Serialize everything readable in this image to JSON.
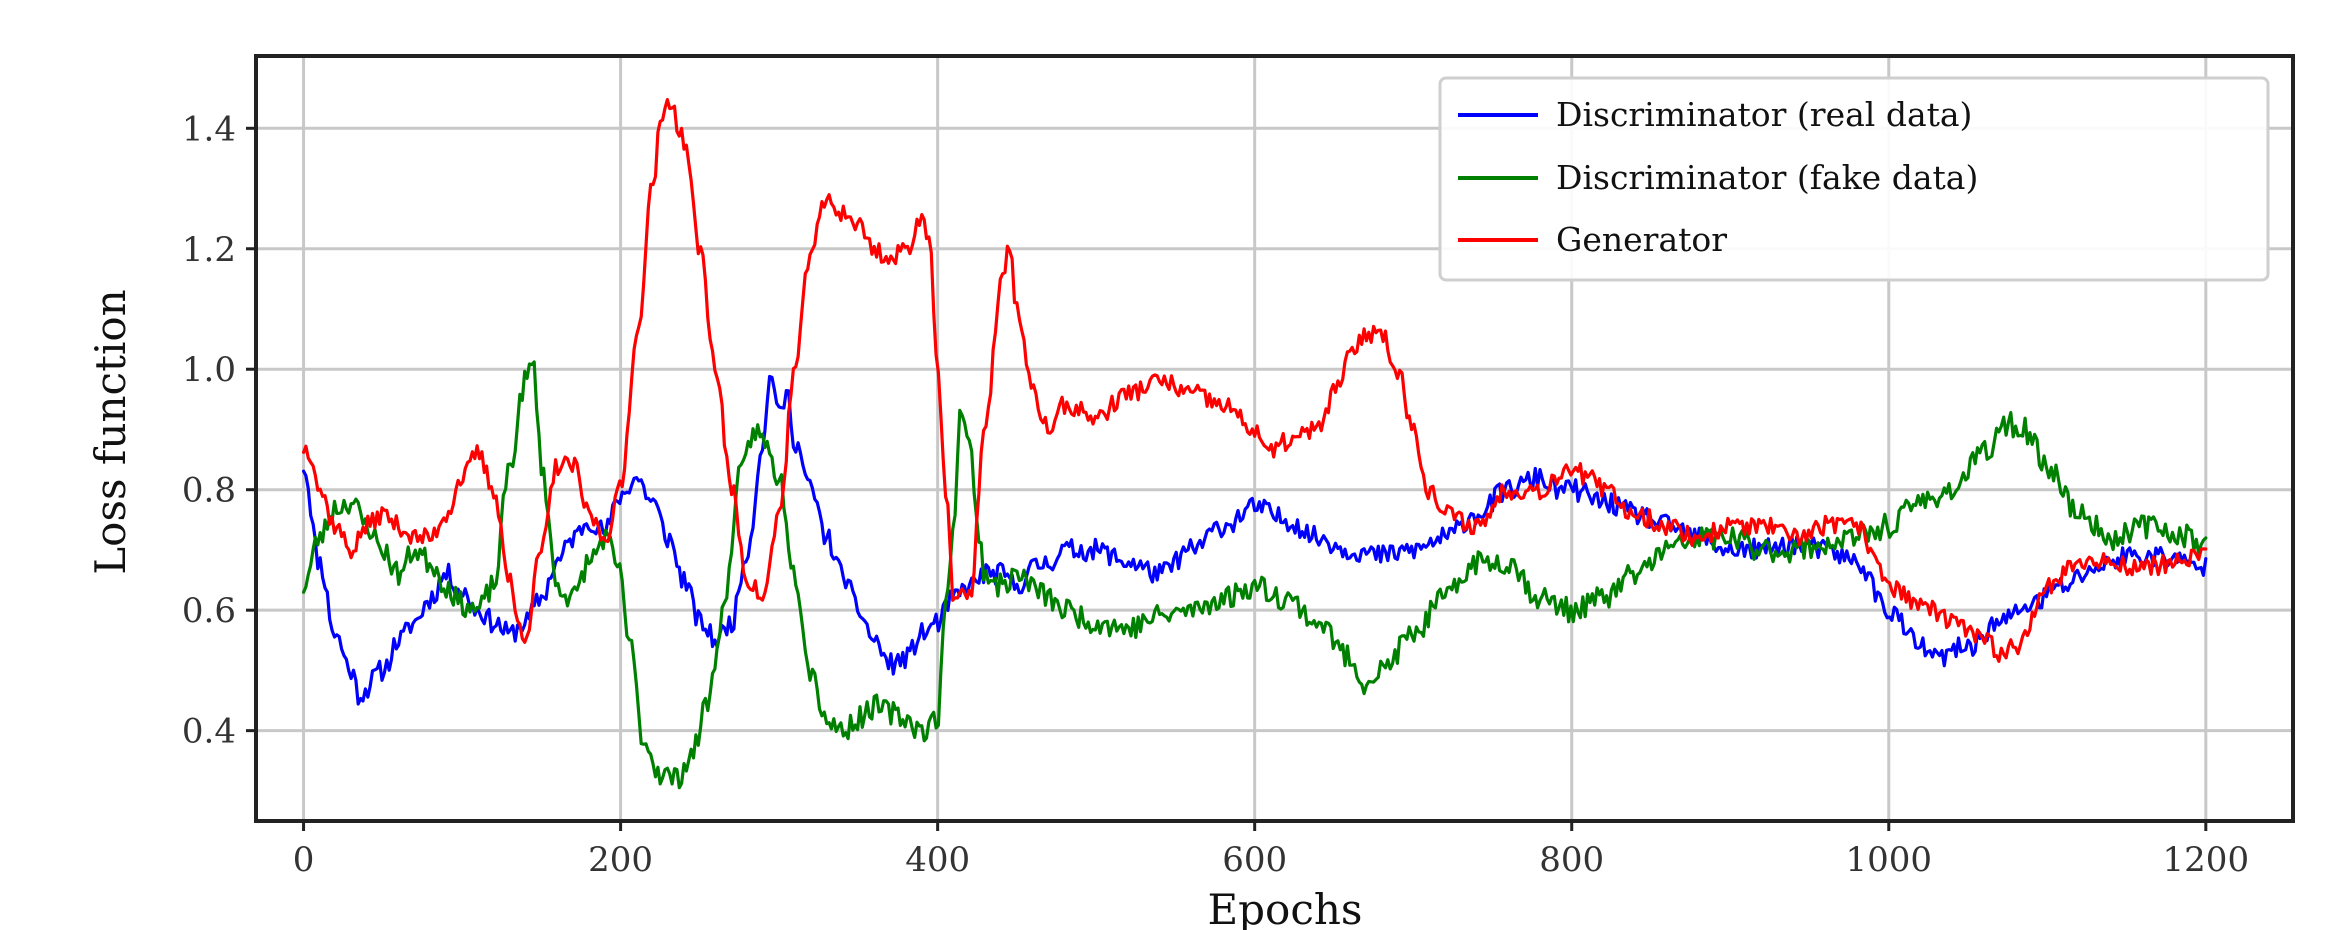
{
  "chart_data": {
    "type": "line",
    "title": "",
    "xlabel": "Epochs",
    "ylabel": "Loss function",
    "xlim": [
      -30,
      1255
    ],
    "ylim": [
      0.25,
      1.52
    ],
    "xticks": [
      0,
      200,
      400,
      600,
      800,
      1000,
      1200
    ],
    "yticks": [
      0.4,
      0.6,
      0.8,
      1.0,
      1.2,
      1.4
    ],
    "xtick_labels": [
      "0",
      "200",
      "400",
      "600",
      "800",
      "1000",
      "1200"
    ],
    "ytick_labels": [
      "0.4",
      "0.6",
      "0.8",
      "1.0",
      "1.2",
      "1.4"
    ],
    "grid": true,
    "legend_position": "top-right",
    "series": [
      {
        "name": "Discriminator (real data)",
        "color": "#0000ff",
        "keypoints": [
          [
            0,
            0.84
          ],
          [
            10,
            0.68
          ],
          [
            20,
            0.56
          ],
          [
            30,
            0.5
          ],
          [
            35,
            0.46
          ],
          [
            50,
            0.5
          ],
          [
            60,
            0.55
          ],
          [
            70,
            0.58
          ],
          [
            80,
            0.62
          ],
          [
            90,
            0.66
          ],
          [
            100,
            0.63
          ],
          [
            110,
            0.6
          ],
          [
            120,
            0.58
          ],
          [
            130,
            0.56
          ],
          [
            140,
            0.58
          ],
          [
            150,
            0.62
          ],
          [
            160,
            0.68
          ],
          [
            170,
            0.72
          ],
          [
            180,
            0.75
          ],
          [
            190,
            0.73
          ],
          [
            200,
            0.79
          ],
          [
            210,
            0.82
          ],
          [
            220,
            0.78
          ],
          [
            230,
            0.72
          ],
          [
            240,
            0.65
          ],
          [
            250,
            0.58
          ],
          [
            260,
            0.55
          ],
          [
            270,
            0.58
          ],
          [
            280,
            0.7
          ],
          [
            290,
            0.88
          ],
          [
            295,
            1.0
          ],
          [
            300,
            0.92
          ],
          [
            305,
            0.96
          ],
          [
            310,
            0.88
          ],
          [
            320,
            0.8
          ],
          [
            330,
            0.72
          ],
          [
            340,
            0.66
          ],
          [
            350,
            0.6
          ],
          [
            360,
            0.55
          ],
          [
            370,
            0.51
          ],
          [
            380,
            0.52
          ],
          [
            390,
            0.56
          ],
          [
            400,
            0.58
          ],
          [
            410,
            0.62
          ],
          [
            420,
            0.64
          ],
          [
            430,
            0.66
          ],
          [
            440,
            0.66
          ],
          [
            450,
            0.64
          ],
          [
            460,
            0.67
          ],
          [
            470,
            0.68
          ],
          [
            480,
            0.7
          ],
          [
            500,
            0.7
          ],
          [
            520,
            0.68
          ],
          [
            540,
            0.66
          ],
          [
            560,
            0.7
          ],
          [
            580,
            0.74
          ],
          [
            600,
            0.77
          ],
          [
            620,
            0.75
          ],
          [
            640,
            0.72
          ],
          [
            660,
            0.7
          ],
          [
            680,
            0.69
          ],
          [
            700,
            0.7
          ],
          [
            720,
            0.72
          ],
          [
            740,
            0.76
          ],
          [
            760,
            0.8
          ],
          [
            780,
            0.82
          ],
          [
            790,
            0.8
          ],
          [
            800,
            0.8
          ],
          [
            820,
            0.78
          ],
          [
            840,
            0.76
          ],
          [
            860,
            0.74
          ],
          [
            880,
            0.72
          ],
          [
            900,
            0.7
          ],
          [
            920,
            0.7
          ],
          [
            940,
            0.71
          ],
          [
            960,
            0.7
          ],
          [
            980,
            0.68
          ],
          [
            1000,
            0.6
          ],
          [
            1020,
            0.54
          ],
          [
            1030,
            0.52
          ],
          [
            1050,
            0.54
          ],
          [
            1070,
            0.58
          ],
          [
            1090,
            0.61
          ],
          [
            1110,
            0.64
          ],
          [
            1130,
            0.67
          ],
          [
            1150,
            0.69
          ],
          [
            1170,
            0.69
          ],
          [
            1200,
            0.67
          ]
        ],
        "noise": 0.018,
        "seed": 11
      },
      {
        "name": "Discriminator (fake data)",
        "color": "#008000",
        "keypoints": [
          [
            0,
            0.64
          ],
          [
            10,
            0.72
          ],
          [
            20,
            0.77
          ],
          [
            30,
            0.78
          ],
          [
            40,
            0.74
          ],
          [
            50,
            0.7
          ],
          [
            60,
            0.66
          ],
          [
            70,
            0.7
          ],
          [
            80,
            0.68
          ],
          [
            90,
            0.64
          ],
          [
            100,
            0.61
          ],
          [
            110,
            0.6
          ],
          [
            120,
            0.64
          ],
          [
            130,
            0.84
          ],
          [
            140,
            0.98
          ],
          [
            145,
            1.01
          ],
          [
            150,
            0.84
          ],
          [
            160,
            0.64
          ],
          [
            170,
            0.62
          ],
          [
            180,
            0.68
          ],
          [
            190,
            0.72
          ],
          [
            200,
            0.66
          ],
          [
            205,
            0.55
          ],
          [
            215,
            0.38
          ],
          [
            225,
            0.33
          ],
          [
            235,
            0.32
          ],
          [
            245,
            0.36
          ],
          [
            255,
            0.45
          ],
          [
            265,
            0.6
          ],
          [
            275,
            0.82
          ],
          [
            285,
            0.9
          ],
          [
            290,
            0.88
          ],
          [
            300,
            0.82
          ],
          [
            310,
            0.66
          ],
          [
            320,
            0.5
          ],
          [
            330,
            0.42
          ],
          [
            340,
            0.4
          ],
          [
            350,
            0.42
          ],
          [
            360,
            0.44
          ],
          [
            370,
            0.43
          ],
          [
            380,
            0.42
          ],
          [
            390,
            0.4
          ],
          [
            400,
            0.42
          ],
          [
            405,
            0.6
          ],
          [
            410,
            0.75
          ],
          [
            415,
            0.94
          ],
          [
            420,
            0.88
          ],
          [
            425,
            0.74
          ],
          [
            430,
            0.66
          ],
          [
            440,
            0.64
          ],
          [
            450,
            0.66
          ],
          [
            460,
            0.64
          ],
          [
            470,
            0.62
          ],
          [
            480,
            0.6
          ],
          [
            500,
            0.58
          ],
          [
            520,
            0.57
          ],
          [
            540,
            0.59
          ],
          [
            560,
            0.6
          ],
          [
            580,
            0.62
          ],
          [
            600,
            0.64
          ],
          [
            620,
            0.62
          ],
          [
            640,
            0.58
          ],
          [
            660,
            0.52
          ],
          [
            670,
            0.48
          ],
          [
            680,
            0.5
          ],
          [
            700,
            0.56
          ],
          [
            720,
            0.62
          ],
          [
            740,
            0.68
          ],
          [
            760,
            0.68
          ],
          [
            780,
            0.62
          ],
          [
            800,
            0.6
          ],
          [
            820,
            0.62
          ],
          [
            840,
            0.66
          ],
          [
            860,
            0.7
          ],
          [
            880,
            0.72
          ],
          [
            900,
            0.72
          ],
          [
            920,
            0.7
          ],
          [
            940,
            0.7
          ],
          [
            960,
            0.71
          ],
          [
            980,
            0.72
          ],
          [
            1000,
            0.74
          ],
          [
            1020,
            0.78
          ],
          [
            1040,
            0.8
          ],
          [
            1060,
            0.86
          ],
          [
            1075,
            0.91
          ],
          [
            1085,
            0.9
          ],
          [
            1100,
            0.84
          ],
          [
            1120,
            0.76
          ],
          [
            1140,
            0.72
          ],
          [
            1160,
            0.74
          ],
          [
            1180,
            0.73
          ],
          [
            1200,
            0.71
          ]
        ],
        "noise": 0.02,
        "seed": 23
      },
      {
        "name": "Generator",
        "color": "#ff0000",
        "keypoints": [
          [
            0,
            0.87
          ],
          [
            5,
            0.86
          ],
          [
            10,
            0.8
          ],
          [
            20,
            0.74
          ],
          [
            30,
            0.7
          ],
          [
            40,
            0.74
          ],
          [
            50,
            0.76
          ],
          [
            60,
            0.74
          ],
          [
            70,
            0.72
          ],
          [
            80,
            0.72
          ],
          [
            90,
            0.76
          ],
          [
            100,
            0.82
          ],
          [
            110,
            0.86
          ],
          [
            120,
            0.8
          ],
          [
            130,
            0.65
          ],
          [
            135,
            0.58
          ],
          [
            140,
            0.56
          ],
          [
            150,
            0.7
          ],
          [
            160,
            0.84
          ],
          [
            170,
            0.84
          ],
          [
            180,
            0.76
          ],
          [
            190,
            0.72
          ],
          [
            200,
            0.8
          ],
          [
            210,
            1.05
          ],
          [
            220,
            1.3
          ],
          [
            225,
            1.4
          ],
          [
            230,
            1.45
          ],
          [
            240,
            1.38
          ],
          [
            250,
            1.2
          ],
          [
            260,
            1.0
          ],
          [
            270,
            0.8
          ],
          [
            280,
            0.65
          ],
          [
            290,
            0.62
          ],
          [
            300,
            0.76
          ],
          [
            310,
            1.0
          ],
          [
            320,
            1.2
          ],
          [
            330,
            1.28
          ],
          [
            340,
            1.26
          ],
          [
            350,
            1.24
          ],
          [
            360,
            1.2
          ],
          [
            370,
            1.18
          ],
          [
            380,
            1.2
          ],
          [
            390,
            1.25
          ],
          [
            395,
            1.22
          ],
          [
            400,
            1.0
          ],
          [
            405,
            0.8
          ],
          [
            410,
            0.62
          ],
          [
            420,
            0.62
          ],
          [
            430,
            0.9
          ],
          [
            440,
            1.14
          ],
          [
            445,
            1.21
          ],
          [
            450,
            1.1
          ],
          [
            460,
            0.96
          ],
          [
            470,
            0.9
          ],
          [
            480,
            0.94
          ],
          [
            500,
            0.92
          ],
          [
            520,
            0.96
          ],
          [
            540,
            0.98
          ],
          [
            560,
            0.96
          ],
          [
            580,
            0.94
          ],
          [
            600,
            0.9
          ],
          [
            610,
            0.86
          ],
          [
            620,
            0.88
          ],
          [
            640,
            0.9
          ],
          [
            650,
            0.96
          ],
          [
            660,
            1.02
          ],
          [
            670,
            1.06
          ],
          [
            680,
            1.06
          ],
          [
            690,
            1.0
          ],
          [
            700,
            0.9
          ],
          [
            710,
            0.8
          ],
          [
            720,
            0.76
          ],
          [
            740,
            0.74
          ],
          [
            760,
            0.8
          ],
          [
            780,
            0.8
          ],
          [
            800,
            0.84
          ],
          [
            810,
            0.82
          ],
          [
            820,
            0.8
          ],
          [
            840,
            0.76
          ],
          [
            860,
            0.74
          ],
          [
            880,
            0.72
          ],
          [
            900,
            0.74
          ],
          [
            920,
            0.74
          ],
          [
            940,
            0.72
          ],
          [
            960,
            0.74
          ],
          [
            980,
            0.74
          ],
          [
            990,
            0.7
          ],
          [
            1000,
            0.64
          ],
          [
            1020,
            0.61
          ],
          [
            1040,
            0.58
          ],
          [
            1060,
            0.55
          ],
          [
            1070,
            0.53
          ],
          [
            1080,
            0.54
          ],
          [
            1100,
            0.64
          ],
          [
            1120,
            0.68
          ],
          [
            1140,
            0.68
          ],
          [
            1160,
            0.67
          ],
          [
            1180,
            0.68
          ],
          [
            1200,
            0.69
          ]
        ],
        "noise": 0.016,
        "seed": 37
      }
    ]
  }
}
